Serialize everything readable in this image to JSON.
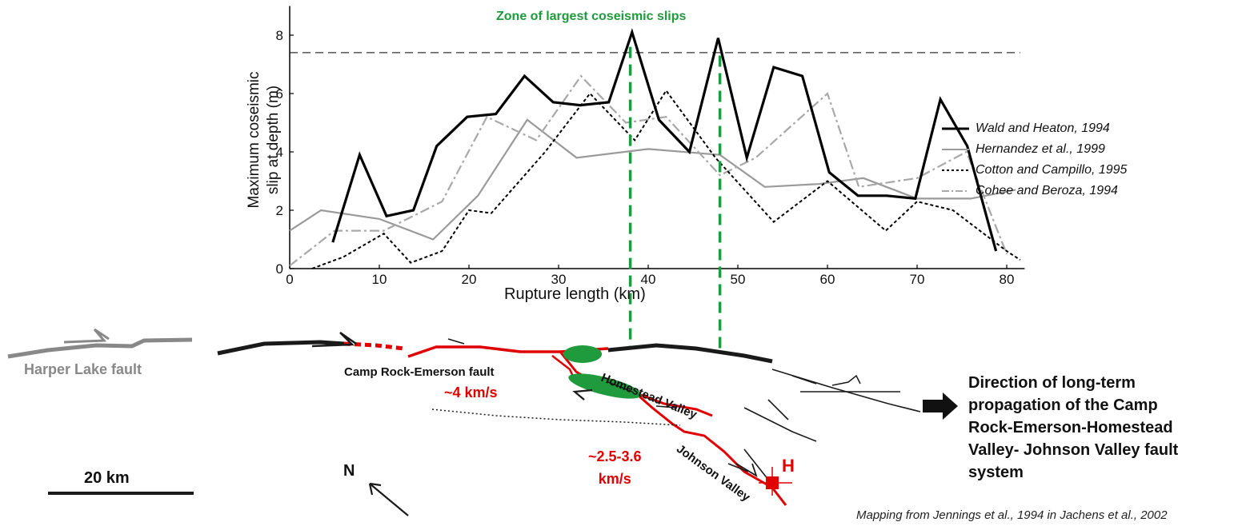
{
  "chart_data": {
    "type": "line",
    "xlabel": "Rupture length (km)",
    "ylabel": "Maximum coseismic slip at depth (m)",
    "ylabel_lines": [
      "Maximum coseismic",
      "slip at depth (m)"
    ],
    "xlim": [
      0,
      82
    ],
    "ylim": [
      0,
      9
    ],
    "xticks": [
      0,
      10,
      20,
      30,
      40,
      50,
      60,
      70,
      80
    ],
    "yticks": [
      0,
      2,
      4,
      6,
      8
    ],
    "reference_line_y": 7.4,
    "zone_label": "Zone of largest coseismic slips",
    "zone_x": [
      38,
      48
    ],
    "legend_position": "right",
    "series": [
      {
        "name": "Wald and Heaton, 1994",
        "color": "#000000",
        "style": "solid-thick",
        "x": [
          4.8,
          7.8,
          10.8,
          13.8,
          16.4,
          19.8,
          23.0,
          26.2,
          29.4,
          32.4,
          35.6,
          38.2,
          41.2,
          44.6,
          47.8,
          51.0,
          54.0,
          57.2,
          60.2,
          63.4,
          66.6,
          69.8,
          72.6,
          75.6,
          78.8
        ],
        "y": [
          0.9,
          3.9,
          1.8,
          2.0,
          4.2,
          5.2,
          5.3,
          6.6,
          5.7,
          5.6,
          5.7,
          8.1,
          5.1,
          4.0,
          7.9,
          3.8,
          6.9,
          6.6,
          3.3,
          2.5,
          2.5,
          2.4,
          5.8,
          4.2,
          0.6
        ]
      },
      {
        "name": "Hernandez et al., 1999",
        "color": "#9a9a9a",
        "style": "solid",
        "x": [
          0,
          3.5,
          10,
          16,
          21,
          26.5,
          32,
          40,
          48,
          53,
          59,
          64,
          70,
          76,
          81
        ],
        "y": [
          1.3,
          2.0,
          1.7,
          1.0,
          2.5,
          5.1,
          3.8,
          4.1,
          3.9,
          2.8,
          2.9,
          3.1,
          2.4,
          2.4,
          2.7
        ]
      },
      {
        "name": "Cotton and Campillo, 1995",
        "color": "#000000",
        "style": "dotted",
        "x": [
          2.5,
          6,
          10.5,
          13.5,
          17,
          20,
          22.5,
          28.5,
          33.5,
          38.5,
          42,
          47.5,
          54,
          60,
          66.5,
          70,
          74,
          80,
          81.5
        ],
        "y": [
          0.0,
          0.4,
          1.2,
          0.2,
          0.6,
          2.0,
          1.9,
          4.0,
          6.0,
          4.4,
          6.1,
          3.8,
          1.6,
          3.0,
          1.3,
          2.3,
          2.0,
          0.6,
          0.3
        ]
      },
      {
        "name": "Cohee and Beroza, 1994",
        "color": "#a8a8a8",
        "style": "dashdot",
        "x": [
          0,
          5,
          10.5,
          17,
          22,
          27.5,
          32.5,
          37.5,
          42,
          48,
          52,
          60,
          63.5,
          70,
          75.5,
          80
        ],
        "y": [
          0.1,
          1.3,
          1.3,
          2.3,
          5.2,
          4.4,
          6.6,
          5.0,
          5.2,
          3.2,
          3.8,
          6.0,
          2.8,
          3.1,
          4.0,
          0.5
        ]
      }
    ]
  },
  "map": {
    "harper_lake_label": "Harper Lake fault",
    "camp_rock_label": "Camp Rock-Emerson fault",
    "homestead_label": "Homestead Valley",
    "johnson_label": "Johnson Valley",
    "speed1": "~4 km/s",
    "speed2_line1": "~2.5-3.6",
    "speed2_line2": "km/s",
    "hypocenter": "H",
    "north": "N",
    "scale_label": "20 km",
    "direction_lines": [
      "Direction of long-term",
      "propagation of the Camp",
      "Rock-Emerson-Homestead",
      "Valley- Johnson Valley fault",
      "system"
    ],
    "credit": "Mapping from Jennings et al., 1994 in Jachens et al., 2002",
    "colors": {
      "rupture": "#e00000",
      "fault": "#1a1a1a",
      "zone": "#1f9a3c",
      "harper": "#888888"
    }
  }
}
